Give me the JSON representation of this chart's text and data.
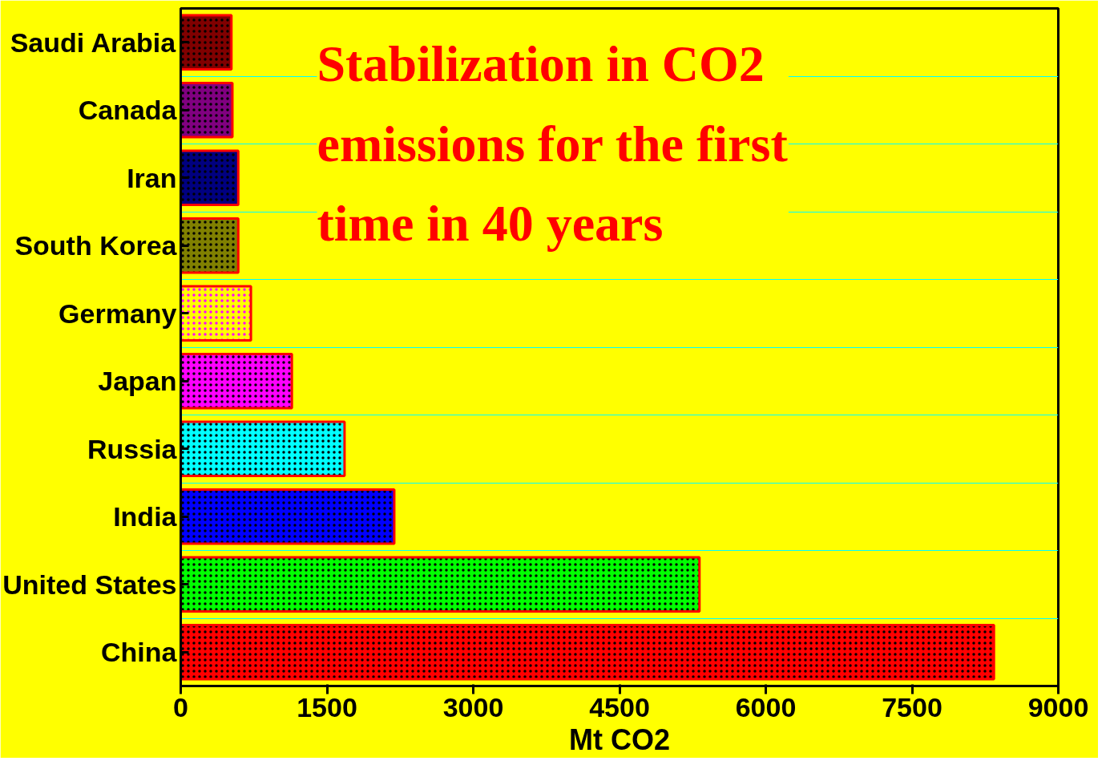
{
  "chart_data": {
    "type": "bar",
    "orientation": "horizontal",
    "categories": [
      "Saudi Arabia",
      "Canada",
      "Iran",
      "South Korea",
      "Germany",
      "Japan",
      "Russia",
      "India",
      "United States",
      "China"
    ],
    "values": [
      520,
      530,
      590,
      590,
      720,
      1140,
      1680,
      2190,
      5320,
      8340
    ],
    "colors": [
      "#800000",
      "#800080",
      "#000080",
      "#808000",
      "#ffff00",
      "#ff00ff",
      "#00ffff",
      "#0000ff",
      "#00ff00",
      "#ff0000"
    ],
    "xlim": [
      0,
      9000
    ],
    "xticks": [
      0,
      1500,
      3000,
      4500,
      6000,
      7500,
      9000
    ],
    "xlabel": "Mt CO2",
    "grid": "y",
    "annotations": [
      "Stabilization in CO2\nemissions for the first\ntime in 40 years"
    ]
  }
}
